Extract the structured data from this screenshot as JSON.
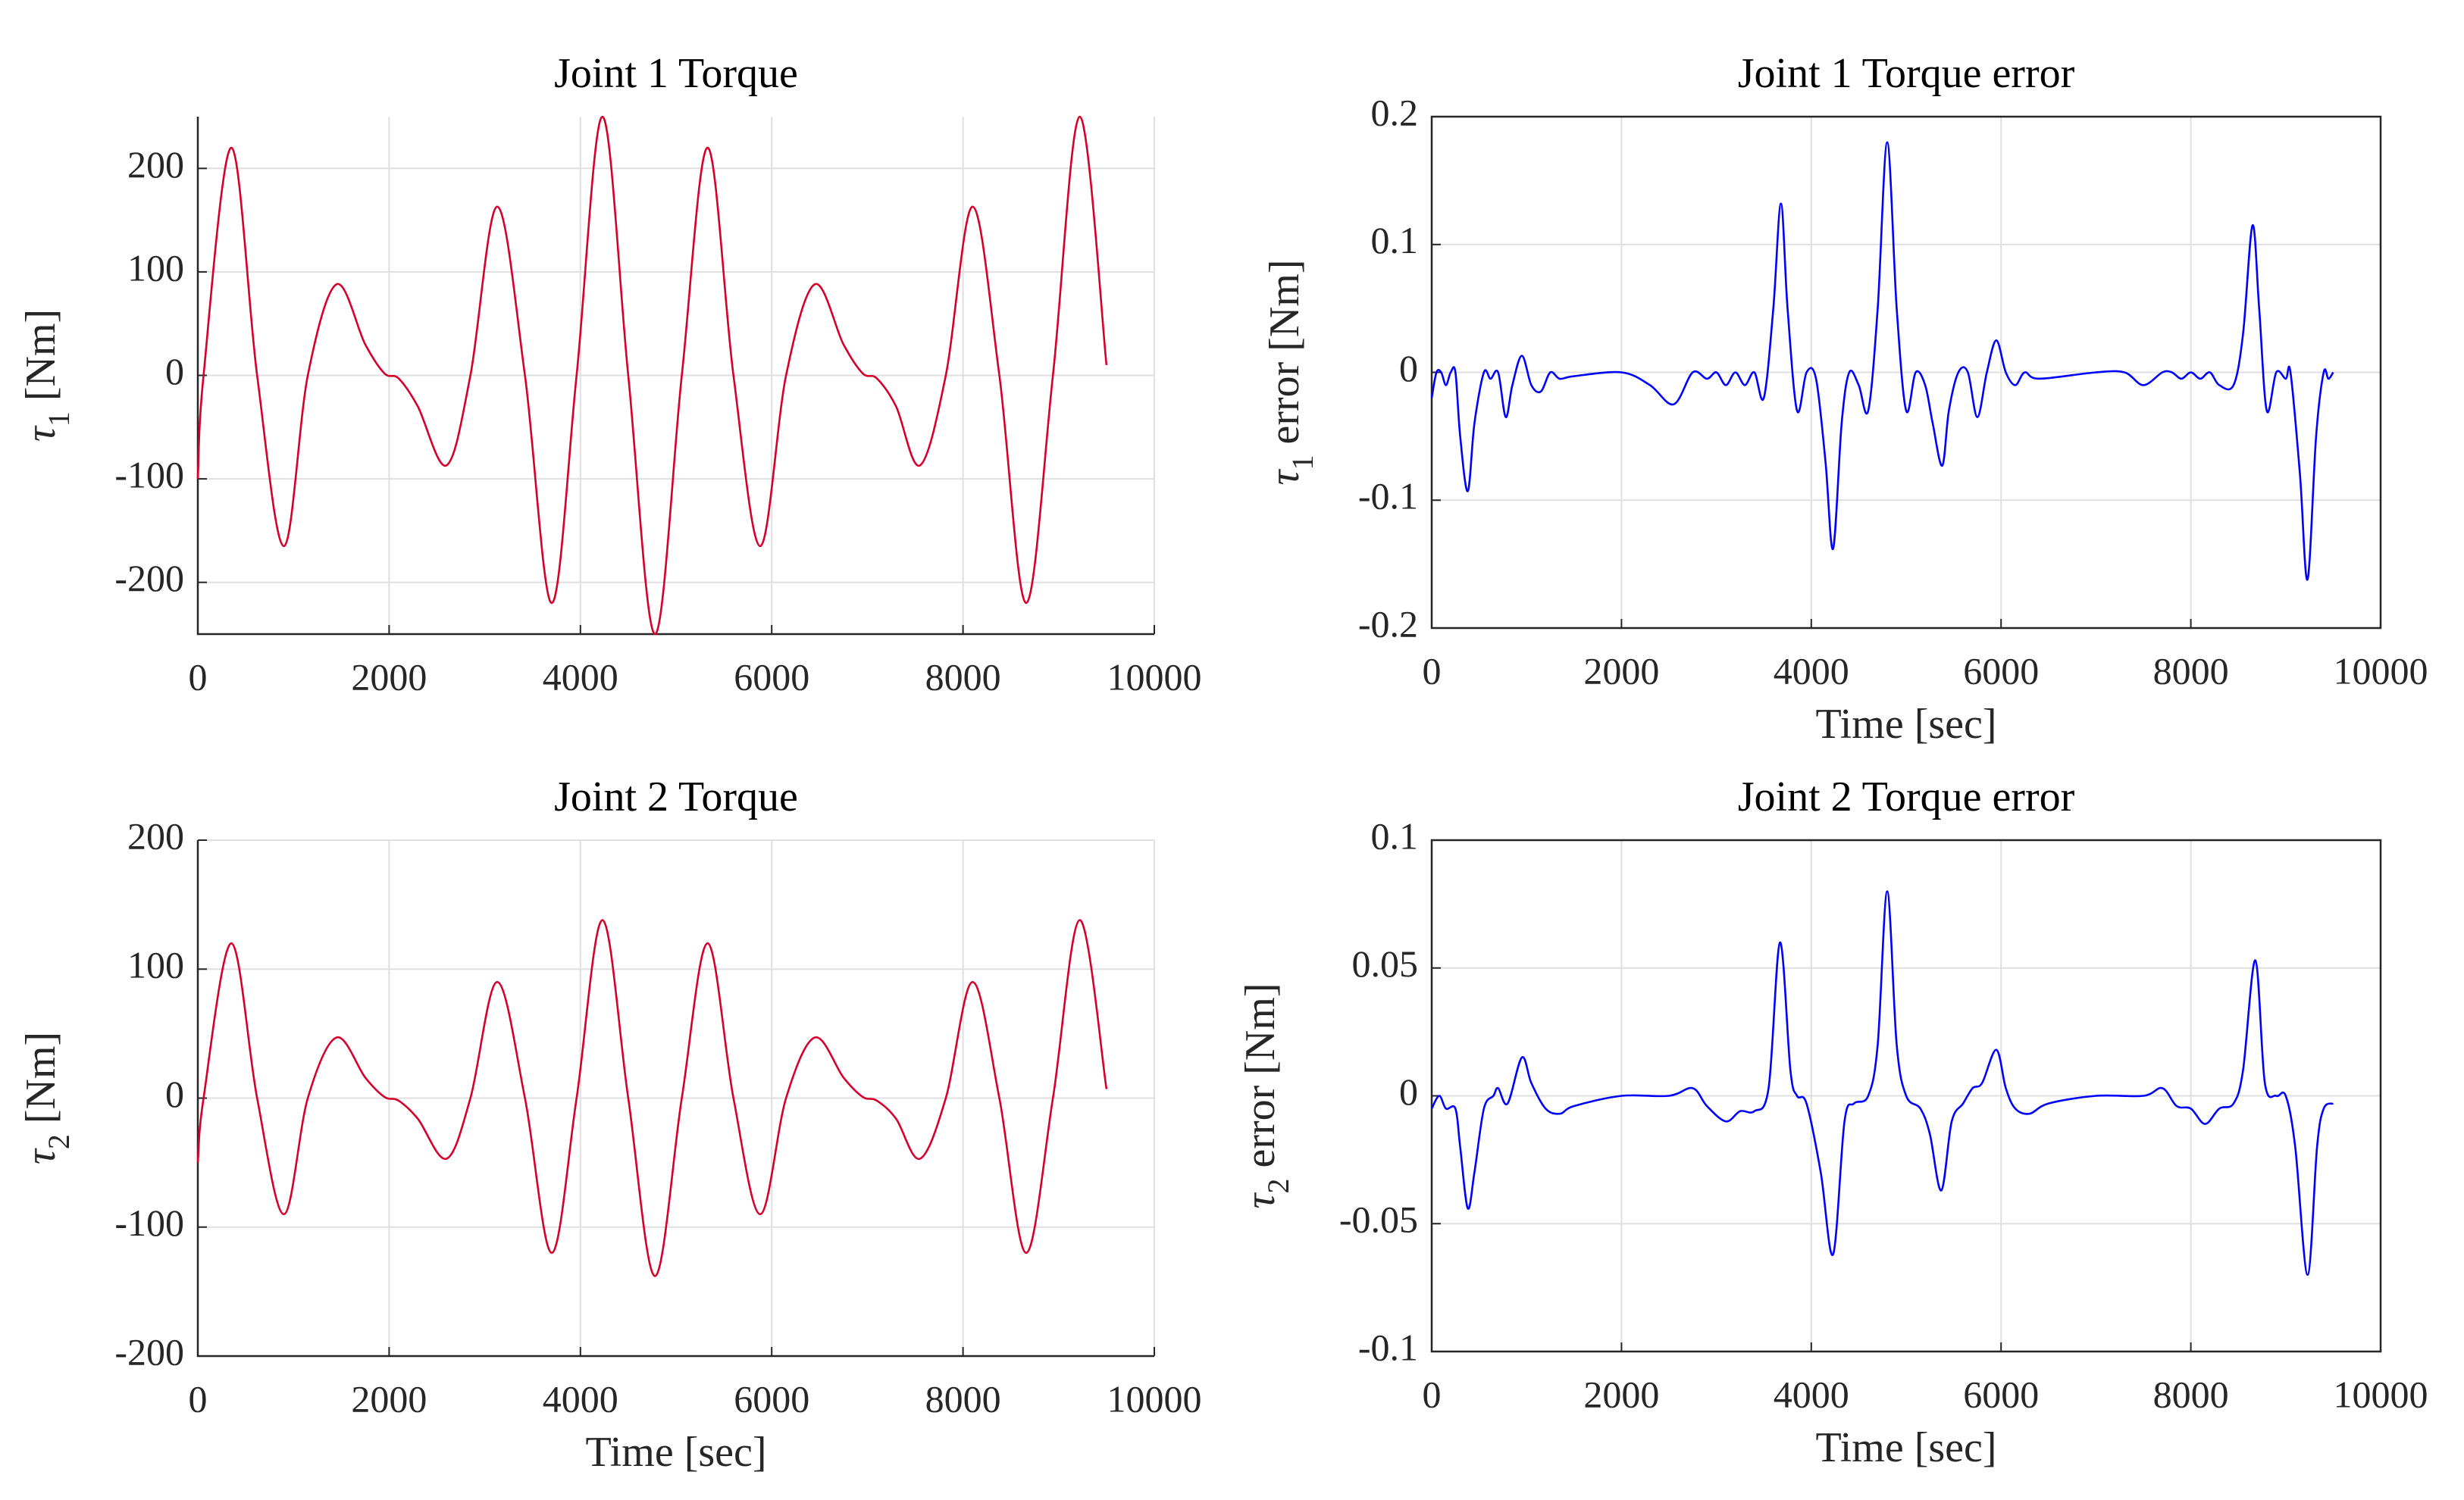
{
  "chart_data": [
    {
      "type": "line",
      "title": "Joint 1 Torque",
      "ylabel": {
        "symbol": "τ",
        "subscript": "1",
        "text": " [Nm]"
      },
      "color": "#d7002b",
      "grid": true,
      "box": false,
      "xlim": [
        0,
        10000
      ],
      "xticks": [
        0,
        2000,
        4000,
        6000,
        8000,
        10000
      ],
      "ylim": [
        -250,
        250
      ],
      "yticks": [
        -200,
        -100,
        0,
        100,
        200
      ],
      "x": [
        0,
        60,
        350,
        620,
        900,
        1150,
        1450,
        1750,
        1950,
        2100,
        2300,
        2600,
        2850,
        3130,
        3420,
        3700,
        3960,
        4230,
        4500,
        4780,
        5060,
        5330,
        5600,
        5880,
        6150,
        6450,
        6750,
        6950,
        7100,
        7300,
        7550,
        7820,
        8100,
        8380,
        8660,
        8940,
        9220,
        9500
      ],
      "values": [
        -100,
        0,
        220,
        0,
        -165,
        0,
        88,
        30,
        2,
        -3,
        -30,
        -87,
        0,
        163,
        0,
        -220,
        0,
        250,
        0,
        -250,
        0,
        220,
        0,
        -165,
        0,
        88,
        30,
        2,
        -3,
        -30,
        -87,
        0,
        163,
        0,
        -220,
        0,
        250,
        10
      ]
    },
    {
      "type": "line",
      "title": "Joint 1 Torque error",
      "xlabel": "Time [sec]",
      "ylabel": {
        "symbol": "τ",
        "subscript": "1",
        "text": " error [Nm]"
      },
      "color": "#0000ff",
      "grid": true,
      "box": true,
      "xlim": [
        0,
        10000
      ],
      "xticks": [
        0,
        2000,
        4000,
        6000,
        8000,
        10000
      ],
      "ylim": [
        -0.2,
        0.2
      ],
      "yticks": [
        -0.2,
        -0.1,
        0,
        0.1,
        0.2
      ],
      "x": [
        0,
        50,
        100,
        150,
        200,
        250,
        300,
        380,
        450,
        550,
        620,
        700,
        780,
        850,
        950,
        1050,
        1150,
        1250,
        1350,
        1500,
        2000,
        2300,
        2550,
        2750,
        2900,
        3000,
        3100,
        3200,
        3300,
        3400,
        3500,
        3600,
        3680,
        3750,
        3850,
        3950,
        4050,
        4150,
        4230,
        4320,
        4400,
        4500,
        4600,
        4700,
        4800,
        4900,
        5000,
        5100,
        5200,
        5280,
        5380,
        5450,
        5550,
        5650,
        5750,
        5850,
        5950,
        6050,
        6150,
        6250,
        6400,
        7000,
        7300,
        7500,
        7700,
        7800,
        7900,
        8000,
        8100,
        8200,
        8300,
        8450,
        8550,
        8650,
        8720,
        8800,
        8900,
        9000,
        9050,
        9150,
        9230,
        9320,
        9400,
        9450,
        9500
      ],
      "values": [
        -0.02,
        0,
        0,
        -0.01,
        0,
        0,
        -0.05,
        -0.093,
        -0.04,
        0,
        -0.005,
        0,
        -0.035,
        -0.01,
        0.013,
        -0.01,
        -0.015,
        0,
        -0.005,
        -0.003,
        0,
        -0.01,
        -0.025,
        0,
        -0.005,
        0,
        -0.01,
        0,
        -0.01,
        0,
        -0.02,
        0.05,
        0.132,
        0.05,
        -0.03,
        0,
        -0.005,
        -0.07,
        -0.138,
        -0.04,
        0,
        -0.01,
        -0.03,
        0.05,
        0.18,
        0.05,
        -0.03,
        0,
        -0.01,
        -0.04,
        -0.073,
        -0.03,
        0,
        0,
        -0.035,
        0,
        0.025,
        0,
        -0.01,
        0,
        -0.005,
        0,
        0,
        -0.01,
        0,
        0,
        -0.005,
        0,
        -0.005,
        0,
        -0.01,
        -0.01,
        0.03,
        0.115,
        0.05,
        -0.03,
        0,
        -0.005,
        0,
        -0.08,
        -0.162,
        -0.05,
        0,
        -0.005,
        0
      ]
    },
    {
      "type": "line",
      "title": "Joint 2 Torque",
      "xlabel": "Time [sec]",
      "ylabel": {
        "symbol": "τ",
        "subscript": "2",
        "text": " [Nm]"
      },
      "color": "#d7002b",
      "grid": true,
      "box": false,
      "xlim": [
        0,
        10000
      ],
      "xticks": [
        0,
        2000,
        4000,
        6000,
        8000,
        10000
      ],
      "ylim": [
        -200,
        200
      ],
      "yticks": [
        -200,
        -100,
        0,
        100,
        200
      ],
      "x": [
        0,
        60,
        350,
        620,
        900,
        1150,
        1450,
        1750,
        1950,
        2100,
        2300,
        2600,
        2850,
        3130,
        3420,
        3700,
        3960,
        4230,
        4500,
        4780,
        5060,
        5330,
        5600,
        5880,
        6150,
        6450,
        6750,
        6950,
        7100,
        7300,
        7550,
        7820,
        8100,
        8380,
        8660,
        8940,
        9220,
        9500
      ],
      "values": [
        -50,
        0,
        120,
        0,
        -90,
        0,
        47,
        16,
        1,
        -2,
        -16,
        -47,
        0,
        90,
        0,
        -120,
        0,
        138,
        0,
        -138,
        0,
        120,
        0,
        -90,
        0,
        47,
        16,
        1,
        -2,
        -16,
        -47,
        0,
        90,
        0,
        -120,
        0,
        138,
        7
      ]
    },
    {
      "type": "line",
      "title": "Joint 2 Torque error",
      "xlabel": "Time [sec]",
      "ylabel": {
        "symbol": "τ",
        "subscript": "2",
        "text": " error [Nm]"
      },
      "color": "#0000ff",
      "grid": true,
      "box": true,
      "xlim": [
        0,
        10000
      ],
      "xticks": [
        0,
        2000,
        4000,
        6000,
        8000,
        10000
      ],
      "ylim": [
        -0.1,
        0.1
      ],
      "yticks": [
        -0.1,
        -0.05,
        0,
        0.05,
        0.1
      ],
      "x": [
        0,
        80,
        150,
        250,
        300,
        380,
        450,
        550,
        650,
        700,
        800,
        950,
        1050,
        1200,
        1350,
        1500,
        2000,
        2500,
        2750,
        2900,
        3100,
        3250,
        3400,
        3550,
        3670,
        3780,
        3850,
        3950,
        4100,
        4230,
        4350,
        4450,
        4600,
        4700,
        4800,
        4900,
        5000,
        5150,
        5250,
        5370,
        5480,
        5600,
        5700,
        5800,
        5950,
        6050,
        6150,
        6300,
        6500,
        7000,
        7500,
        7700,
        7850,
        8000,
        8150,
        8300,
        8450,
        8550,
        8680,
        8780,
        8900,
        9000,
        9100,
        9230,
        9330,
        9400,
        9500
      ],
      "values": [
        -0.005,
        0,
        -0.005,
        -0.005,
        -0.02,
        -0.044,
        -0.03,
        -0.005,
        0,
        0.003,
        -0.003,
        0.015,
        0.005,
        -0.005,
        -0.007,
        -0.004,
        0,
        0,
        0.003,
        -0.004,
        -0.01,
        -0.006,
        -0.006,
        0.003,
        0.06,
        0.01,
        0,
        -0.003,
        -0.03,
        -0.062,
        -0.01,
        -0.003,
        0,
        0.02,
        0.08,
        0.02,
        0,
        -0.005,
        -0.015,
        -0.037,
        -0.01,
        -0.003,
        0.003,
        0.005,
        0.018,
        0.003,
        -0.005,
        -0.007,
        -0.003,
        0,
        0,
        0.003,
        -0.004,
        -0.005,
        -0.011,
        -0.005,
        -0.003,
        0.01,
        0.053,
        0.005,
        0,
        0,
        -0.02,
        -0.07,
        -0.02,
        -0.005,
        -0.003
      ]
    }
  ]
}
